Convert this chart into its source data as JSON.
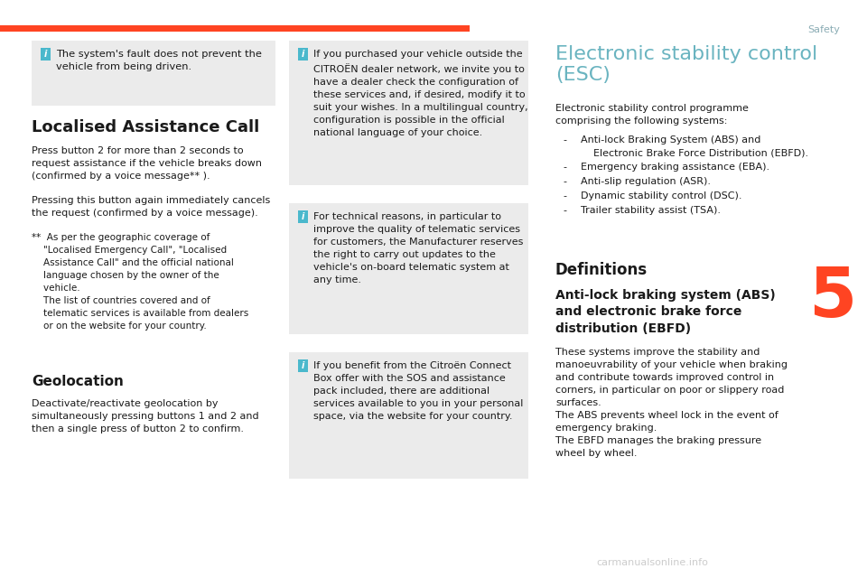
{
  "bg_color": "#ffffff",
  "header_bar_color": "#ff4422",
  "header_text": "Safety",
  "header_text_color": "#8aacb4",
  "chapter_number": "5",
  "chapter_number_color": "#ff4422",
  "info_box_bg": "#ebebeb",
  "info_icon_bg": "#4ab8cc",
  "text_color": "#1a1a1a",
  "heading1_color": "#1a1a1a",
  "title_color": "#6ab4c0",
  "left_info_box_text": "The system's fault does not prevent the\nvehicle from being driven.",
  "section1_title": "Localised Assistance Call",
  "section1_para1": "Press button 2 for more than 2 seconds to\nrequest assistance if the vehicle breaks down\n(confirmed by a voice message** ).",
  "section1_para2": "Pressing this button again immediately cancels\nthe request (confirmed by a voice message).",
  "section1_footnote": "**  As per the geographic coverage of\n    \"Localised Emergency Call\", \"Localised\n    Assistance Call\" and the official national\n    language chosen by the owner of the\n    vehicle.\n    The list of countries covered and of\n    telematic services is available from dealers\n    or on the website for your country.",
  "section2_title": "Geolocation",
  "section2_body": "Deactivate/reactivate geolocation by\nsimultaneously pressing buttons 1 and 2 and\nthen a single press of button 2 to confirm.",
  "mid_box1_text": "If you purchased your vehicle outside the\nCITROËN dealer network, we invite you to\nhave a dealer check the configuration of\nthese services and, if desired, modify it to\nsuit your wishes. In a multilingual country,\nconfiguration is possible in the official\nnational language of your choice.",
  "mid_box2_text": "For technical reasons, in particular to\nimprove the quality of telematic services\nfor customers, the Manufacturer reserves\nthe right to carry out updates to the\nvehicle's on-board telematic system at\nany time.",
  "mid_box3_text": "If you benefit from the Citroën Connect\nBox offer with the SOS and assistance\npack included, there are additional\nservices available to you in your personal\nspace, via the website for your country.",
  "right_title": "Electronic stability control\n(ESC)",
  "right_body1": "Electronic stability control programme\ncomprising the following systems:",
  "right_bullets": [
    "Anti-lock Braking System (ABS) and\n    Electronic Brake Force Distribution (EBFD).",
    "Emergency braking assistance (EBA).",
    "Anti-slip regulation (ASR).",
    "Dynamic stability control (DSC).",
    "Trailer stability assist (TSA)."
  ],
  "right_title2": "Definitions",
  "right_subtitle": "Anti-lock braking system (ABS)\nand electronic brake force\ndistribution (EBFD)",
  "right_body2": "These systems improve the stability and\nmanoeuvrability of your vehicle when braking\nand contribute towards improved control in\ncorners, in particular on poor or slippery road\nsurfaces.\nThe ABS prevents wheel lock in the event of\nemergency braking.\nThe EBFD manages the braking pressure\nwheel by wheel.",
  "watermark": "carmanualsonline.info"
}
